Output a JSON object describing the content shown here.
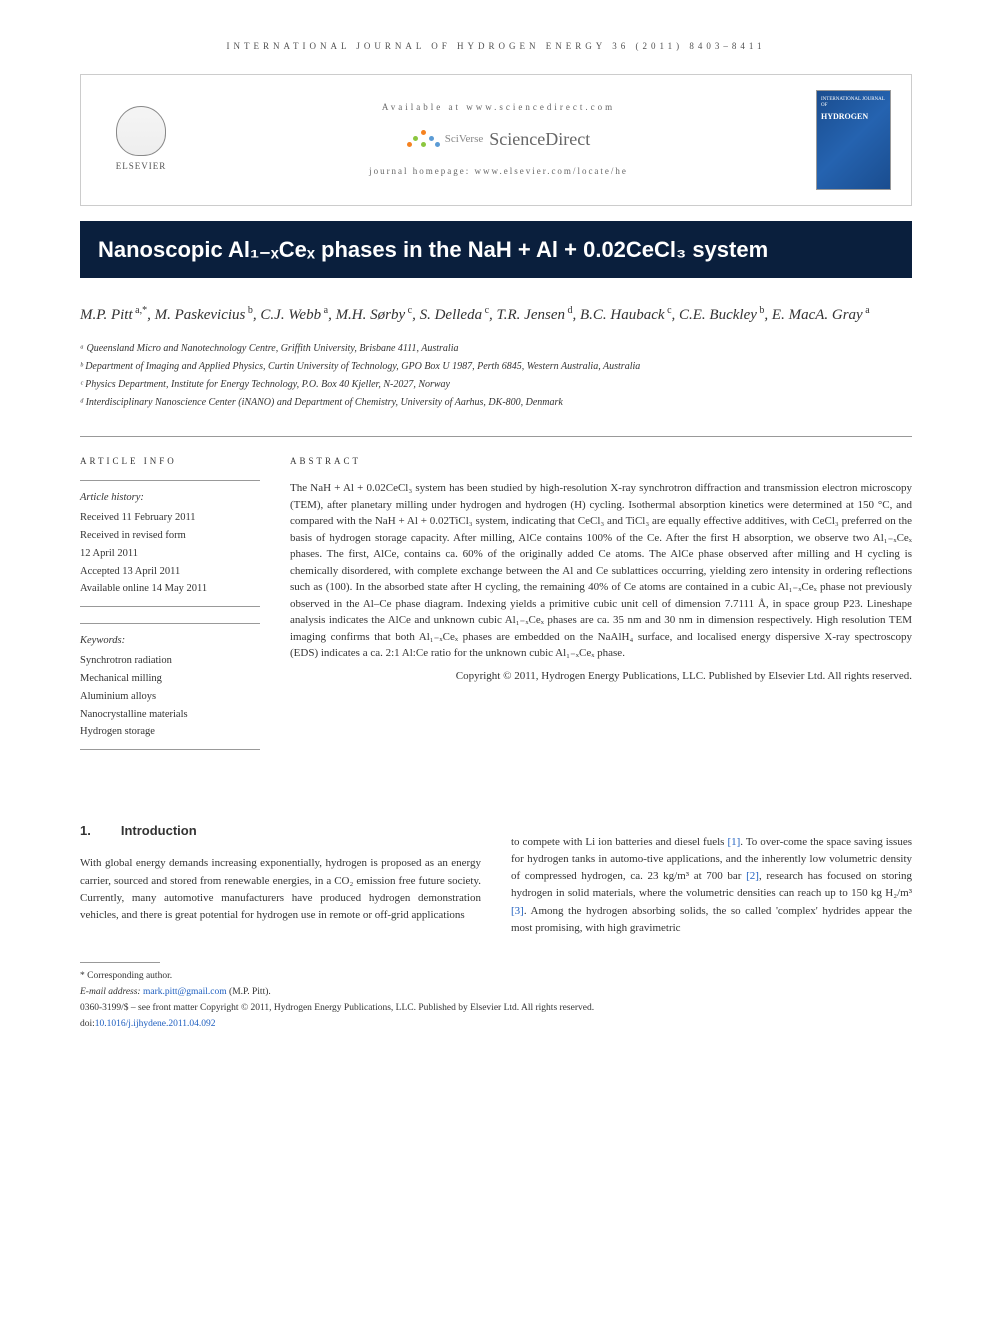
{
  "journal_header": "INTERNATIONAL JOURNAL OF HYDROGEN ENERGY 36 (2011) 8403–8411",
  "banner": {
    "elsevier": "ELSEVIER",
    "available": "Available at www.sciencedirect.com",
    "sciverse": "SciVerse",
    "sciencedirect": "ScienceDirect",
    "homepage": "journal homepage: www.elsevier.com/locate/he",
    "cover_small": "INTERNATIONAL JOURNAL OF",
    "cover_word": "HYDROGEN"
  },
  "title": "Nanoscopic Al₁₋ₓCeₓ phases in the NaH + Al + 0.02CeCl₃ system",
  "authors_html": "M.P. Pitt<span class='author-sup'> a,*</span>, M. Paskevicius<span class='author-sup'> b</span>, C.J. Webb<span class='author-sup'> a</span>, M.H. Sørby<span class='author-sup'> c</span>, S. Delleda<span class='author-sup'> c</span>, T.R. Jensen<span class='author-sup'> d</span>, B.C. Hauback<span class='author-sup'> c</span>, C.E. Buckley<span class='author-sup'> b</span>, E. MacA. Gray<span class='author-sup'> a</span>",
  "affiliations": [
    "ᵃ Queensland Micro and Nanotechnology Centre, Griffith University, Brisbane 4111, Australia",
    "ᵇ Department of Imaging and Applied Physics, Curtin University of Technology, GPO Box U 1987, Perth 6845, Western Australia, Australia",
    "ᶜ Physics Department, Institute for Energy Technology, P.O. Box 40 Kjeller, N-2027, Norway",
    "ᵈ Interdisciplinary Nanoscience Center (iNANO) and Department of Chemistry, University of Aarhus, DK-800, Denmark"
  ],
  "info": {
    "heading": "ARTICLE INFO",
    "history_label": "Article history:",
    "history": [
      "Received 11 February 2011",
      "Received in revised form",
      "12 April 2011",
      "Accepted 13 April 2011",
      "Available online 14 May 2011"
    ],
    "keywords_label": "Keywords:",
    "keywords": [
      "Synchrotron radiation",
      "Mechanical milling",
      "Aluminium alloys",
      "Nanocrystalline materials",
      "Hydrogen storage"
    ]
  },
  "abstract": {
    "heading": "ABSTRACT",
    "text": "The NaH + Al + 0.02CeCl₃ system has been studied by high-resolution X-ray synchrotron diffraction and transmission electron microscopy (TEM), after planetary milling under hydrogen and hydrogen (H) cycling. Isothermal absorption kinetics were determined at 150 °C, and compared with the NaH + Al + 0.02TiCl₃ system, indicating that CeCl₃ and TiCl₃ are equally effective additives, with CeCl₃ preferred on the basis of hydrogen storage capacity. After milling, AlCe contains 100% of the Ce. After the first H absorption, we observe two Al₁₋ₓCeₓ phases. The first, AlCe, contains ca. 60% of the originally added Ce atoms. The AlCe phase observed after milling and H cycling is chemically disordered, with complete exchange between the Al and Ce sublattices occurring, yielding zero intensity in ordering reflections such as (100). In the absorbed state after H cycling, the remaining 40% of Ce atoms are contained in a cubic Al₁₋ₓCeₓ phase not previously observed in the Al–Ce phase diagram. Indexing yields a primitive cubic unit cell of dimension 7.7111 Å, in space group P23. Lineshape analysis indicates the AlCe and unknown cubic Al₁₋ₓCeₓ phases are ca. 35 nm and 30 nm in dimension respectively. High resolution TEM imaging confirms that both Al₁₋ₓCeₓ phases are embedded on the NaAlH₄ surface, and localised energy dispersive X-ray spectroscopy (EDS) indicates a ca. 2:1 Al:Ce ratio for the unknown cubic Al₁₋ₓCeₓ phase.",
    "copyright": "Copyright © 2011, Hydrogen Energy Publications, LLC. Published by Elsevier Ltd. All rights reserved."
  },
  "section1": {
    "num": "1.",
    "title": "Introduction",
    "col1": "With global energy demands increasing exponentially, hydrogen is proposed as an energy carrier, sourced and stored from renewable energies, in a CO₂ emission free future society. Currently, many automotive manufacturers have produced hydrogen demonstration vehicles, and there is great potential for hydrogen use in remote or off-grid applications",
    "col2_pre": "to compete with Li ion batteries and diesel fuels ",
    "col2_cite1": "[1]",
    "col2_mid1": ". To over-come the space saving issues for hydrogen tanks in automo-tive applications, and the inherently low volumetric density of compressed hydrogen, ca. 23 kg/m³ at 700 bar ",
    "col2_cite2": "[2]",
    "col2_mid2": ", research has focused on storing hydrogen in solid materials, where the volumetric densities can reach up to 150 kg H₂/m³ ",
    "col2_cite3": "[3]",
    "col2_post": ". Among the hydrogen absorbing solids, the so called 'complex' hydrides appear the most promising, with high gravimetric"
  },
  "footnotes": {
    "corresponding": "* Corresponding author.",
    "email_label": "E-mail address: ",
    "email": "mark.pitt@gmail.com",
    "email_suffix": " (M.P. Pitt).",
    "issn": "0360-3199/$ – see front matter Copyright © 2011, Hydrogen Energy Publications, LLC. Published by Elsevier Ltd. All rights reserved.",
    "doi_label": "doi:",
    "doi": "10.1016/j.ijhydene.2011.04.092"
  },
  "colors": {
    "title_bg": "#0a1f3d",
    "link": "#2060c0",
    "sd_orange": "#f58220",
    "sd_green": "#8cc63f",
    "sd_blue": "#5b9bd5",
    "cover_bg": "#1a4d8f"
  }
}
